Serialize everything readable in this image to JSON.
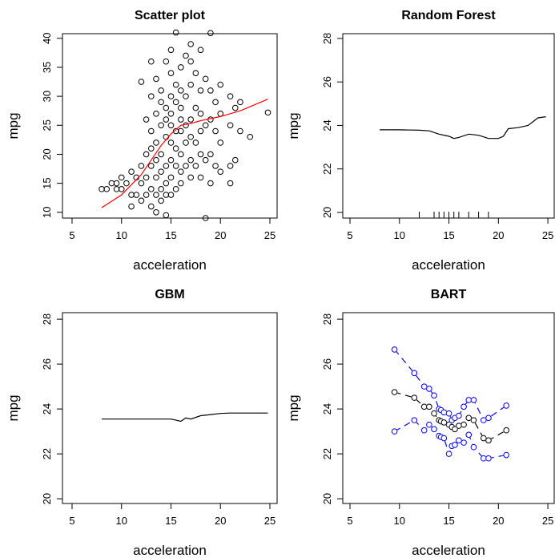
{
  "chart_data": [
    {
      "type": "scatter",
      "title": "Scatter plot",
      "xlabel": "acceleration",
      "ylabel": "mpg",
      "xlim": [
        4.03,
        25.73
      ],
      "ylim": [
        9.0,
        40.8
      ],
      "xticks": [
        5,
        10,
        15,
        20,
        25
      ],
      "yticks": [
        10,
        15,
        20,
        25,
        30,
        35,
        40
      ],
      "color": "#000000",
      "x": [
        8,
        8.5,
        9,
        9.5,
        9.5,
        10,
        10,
        10.5,
        11,
        11,
        11,
        11.5,
        11.5,
        12,
        12,
        12,
        12,
        12.5,
        12.5,
        12.5,
        12.5,
        13,
        13,
        13,
        13,
        13,
        13,
        13,
        13.5,
        13.5,
        13.5,
        13.5,
        13.5,
        13.5,
        13.5,
        14,
        14,
        14,
        14,
        14,
        14,
        14,
        14.5,
        14.5,
        14.5,
        14.5,
        14.5,
        14.5,
        14.5,
        14.5,
        15,
        15,
        15,
        15,
        15,
        15,
        15,
        15,
        15,
        15.5,
        15.5,
        15.5,
        15.5,
        15.5,
        15.5,
        15.5,
        16,
        16,
        16,
        16,
        16,
        16,
        16,
        16,
        16.5,
        16.5,
        16.5,
        16.5,
        16.5,
        17,
        17,
        17,
        17,
        17,
        17,
        17,
        17.5,
        17.5,
        17.5,
        17.5,
        18,
        18,
        18,
        18,
        18,
        18,
        18.5,
        18.5,
        18.5,
        18.5,
        19,
        19,
        19,
        19,
        19,
        19.5,
        19.5,
        19.5,
        20,
        20,
        20,
        20,
        21,
        21,
        21,
        21,
        21.5,
        21.5,
        22,
        22,
        23,
        24.8
      ],
      "y": [
        14,
        14,
        15,
        14,
        15,
        14,
        16,
        15,
        13,
        11,
        17,
        16,
        13,
        12,
        15,
        18,
        32.5,
        13,
        16,
        20,
        26,
        11,
        14,
        18,
        21,
        24,
        30,
        36,
        10,
        13,
        16,
        19,
        22,
        27,
        33,
        12,
        14,
        17,
        20,
        25,
        29,
        31,
        9.5,
        13,
        15,
        18,
        23,
        26,
        28,
        36,
        13,
        16,
        19,
        22,
        25,
        27,
        30,
        34,
        38,
        14,
        18,
        21,
        24,
        29,
        32,
        41,
        15,
        17,
        20,
        24,
        26,
        28,
        31,
        35,
        18,
        22,
        25,
        30,
        37,
        16,
        19,
        23,
        26,
        32,
        36,
        39,
        18,
        22,
        28,
        34,
        16,
        20,
        24,
        27,
        31,
        38,
        9,
        19,
        25,
        33,
        15,
        20,
        26,
        31,
        40.9,
        18,
        24,
        29,
        17,
        22,
        27,
        32,
        15,
        18,
        25,
        30,
        19,
        28,
        24,
        29,
        23,
        27.2
      ],
      "smooth": {
        "color": "#ff0000",
        "x": [
          8,
          10,
          12,
          13,
          14,
          15,
          16,
          17,
          18,
          20,
          22,
          24.8
        ],
        "y": [
          10.8,
          13,
          16.5,
          19,
          21.5,
          23.5,
          25,
          25.3,
          25.8,
          26.5,
          27.5,
          29.5
        ]
      }
    },
    {
      "type": "line",
      "title": "Random Forest",
      "xlabel": "acceleration",
      "ylabel": "mpg",
      "xlim": [
        4.27,
        25.64
      ],
      "ylim": [
        19.74,
        28.22
      ],
      "xticks": [
        5,
        10,
        15,
        20,
        25
      ],
      "yticks": [
        20,
        22,
        24,
        26,
        28
      ],
      "x": [
        8,
        10,
        12,
        13,
        14,
        15,
        15.5,
        16,
        17,
        18,
        19,
        20,
        20.5,
        21,
        22,
        23,
        24,
        24.8
      ],
      "series": [
        {
          "color": "#000000",
          "values": [
            23.8,
            23.8,
            23.78,
            23.75,
            23.6,
            23.5,
            23.4,
            23.45,
            23.6,
            23.55,
            23.4,
            23.4,
            23.5,
            23.85,
            23.9,
            24.0,
            24.35,
            24.4
          ]
        }
      ],
      "rug": [
        12,
        13.5,
        14,
        14.5,
        15,
        15.5,
        16,
        17,
        18,
        19
      ]
    },
    {
      "type": "line",
      "title": "GBM",
      "xlabel": "acceleration",
      "ylabel": "mpg",
      "xlim": [
        4.03,
        25.73
      ],
      "ylim": [
        19.79,
        28.29
      ],
      "xticks": [
        5,
        10,
        15,
        20,
        25
      ],
      "yticks": [
        20,
        22,
        24,
        26,
        28
      ],
      "x": [
        8,
        15,
        15.5,
        16,
        16.5,
        17,
        18,
        19,
        20,
        21,
        24.8
      ],
      "series": [
        {
          "color": "#000000",
          "values": [
            23.55,
            23.55,
            23.5,
            23.45,
            23.6,
            23.55,
            23.7,
            23.75,
            23.8,
            23.82,
            23.82
          ]
        }
      ]
    },
    {
      "type": "line",
      "title": "BART",
      "xlabel": "acceleration",
      "ylabel": "mpg",
      "markers": true,
      "dashed": true,
      "xlim": [
        4.27,
        25.64
      ],
      "ylim": [
        19.79,
        28.29
      ],
      "xticks": [
        5,
        10,
        15,
        20,
        25
      ],
      "yticks": [
        20,
        22,
        24,
        26,
        28
      ],
      "x": [
        9.5,
        11.5,
        12.5,
        13,
        13.5,
        14,
        14.2,
        14.5,
        15,
        15.3,
        15.6,
        16,
        16.5,
        17,
        17.5,
        18.5,
        19,
        20.8
      ],
      "series": [
        {
          "color": "#000000",
          "values": [
            24.75,
            24.5,
            24.1,
            24.1,
            23.8,
            23.5,
            23.45,
            23.4,
            23.3,
            23.2,
            23.1,
            23.25,
            23.3,
            23.6,
            23.5,
            22.7,
            22.6,
            23.05
          ]
        },
        {
          "color": "#0000ff",
          "values": [
            26.65,
            25.6,
            25.0,
            24.9,
            24.6,
            24.0,
            23.95,
            23.85,
            23.8,
            23.5,
            23.6,
            23.7,
            24.1,
            24.4,
            24.4,
            23.5,
            23.6,
            24.15
          ]
        },
        {
          "color": "#0000ff",
          "values": [
            23.0,
            23.5,
            23.05,
            23.3,
            23.1,
            22.8,
            22.75,
            22.7,
            22.0,
            22.35,
            22.4,
            22.6,
            22.5,
            22.85,
            22.3,
            21.8,
            21.8,
            21.95
          ]
        }
      ]
    }
  ]
}
